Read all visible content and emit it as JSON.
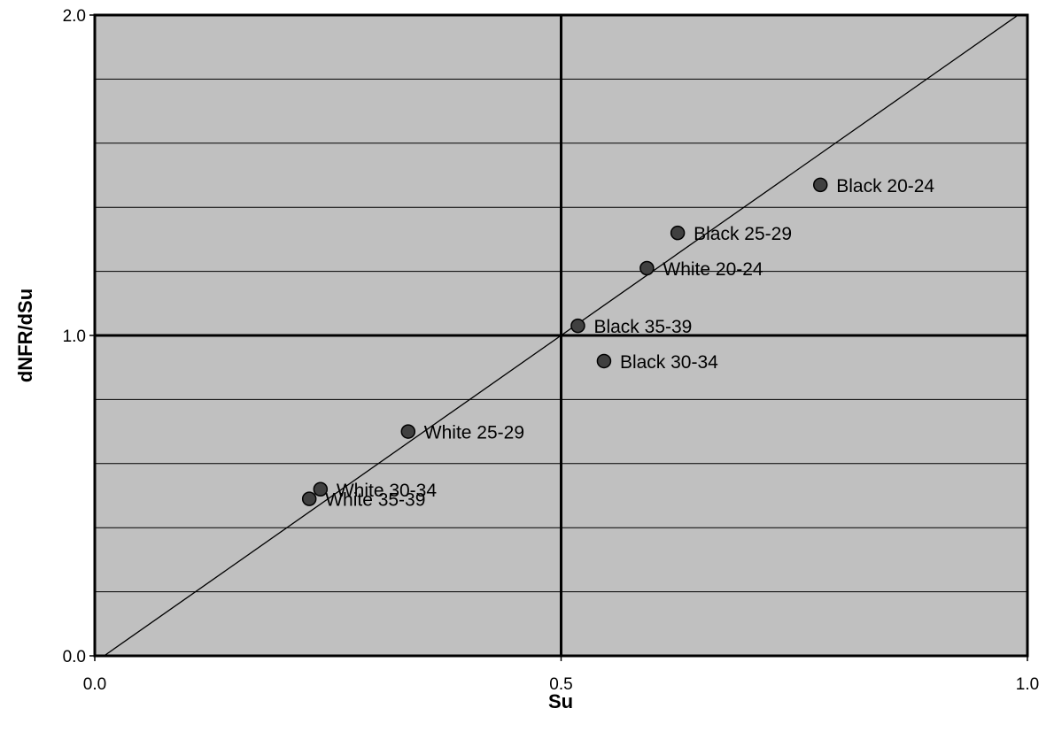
{
  "chart_data": {
    "type": "scatter",
    "title": "",
    "xlabel": "Su",
    "ylabel": "dNFR/dSu",
    "xlim": [
      0.0,
      1.0
    ],
    "ylim": [
      0.0,
      2.0
    ],
    "x_ticks": [
      "0.0",
      "0.5",
      "1.0"
    ],
    "y_ticks": [
      "0.0",
      "1.0",
      "2.0"
    ],
    "grid": true,
    "background_color": "#c0c0c0",
    "point_color": "#404040",
    "reference_line": {
      "from": [
        0.01,
        0.0
      ],
      "to": [
        0.99,
        2.0
      ]
    },
    "reference_crosshair": {
      "x": 0.5,
      "y": 1.0
    },
    "points": [
      {
        "label": "Black 20-24",
        "x": 0.778,
        "y": 1.47
      },
      {
        "label": "Black 25-29",
        "x": 0.625,
        "y": 1.32
      },
      {
        "label": "White 20-24",
        "x": 0.592,
        "y": 1.21
      },
      {
        "label": "Black 35-39",
        "x": 0.518,
        "y": 1.03
      },
      {
        "label": "Black 30-34",
        "x": 0.546,
        "y": 0.92
      },
      {
        "label": "White 25-29",
        "x": 0.336,
        "y": 0.7
      },
      {
        "label": "White 30-34",
        "x": 0.242,
        "y": 0.52
      },
      {
        "label": "White 35-39",
        "x": 0.23,
        "y": 0.49
      }
    ]
  }
}
